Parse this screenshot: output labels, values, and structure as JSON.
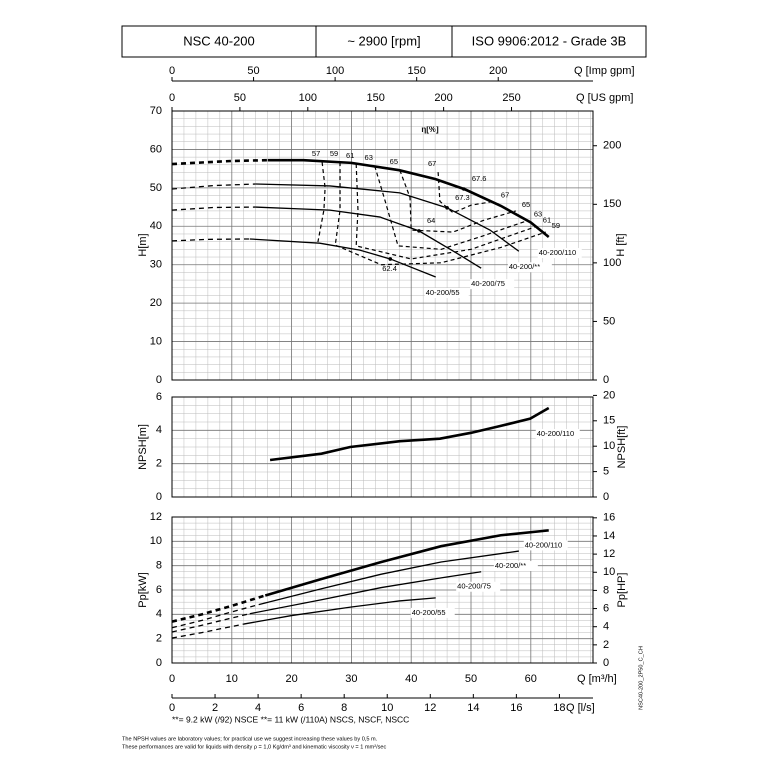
{
  "header": {
    "model": "NSC 40-200",
    "speed": "~ 2900 [rpm]",
    "standard": "ISO 9906:2012 - Grade 3B"
  },
  "chart_data": [
    {
      "type": "line",
      "ylabel": "H[m]",
      "y2label": "H [ft]",
      "annotation": "η[%]",
      "grid": true,
      "xlim": [
        0,
        70.4
      ],
      "xticks": [
        0,
        10,
        20,
        30,
        40,
        50,
        60
      ],
      "ylim": [
        0,
        70
      ],
      "yticks": [
        0,
        10,
        20,
        30,
        40,
        50,
        60,
        70
      ],
      "y2lim": [
        0,
        229.66
      ],
      "y2ticks": [
        0,
        50,
        100,
        150,
        200
      ],
      "top_axes": [
        {
          "label": "Q [Imp gpm]",
          "lim": [
            0,
            258.1
          ],
          "ticks": [
            0,
            50,
            100,
            150,
            200
          ]
        },
        {
          "label": "Q [US gpm]",
          "lim": [
            0,
            310
          ],
          "ticks": [
            0,
            50,
            100,
            150,
            200,
            250
          ]
        }
      ],
      "series": [
        {
          "name": "40-200/110",
          "color": "#000000",
          "width": 2.6,
          "dashed_until": 16,
          "x": [
            0,
            5,
            10,
            16,
            22,
            30,
            38,
            44,
            49,
            55,
            60,
            63
          ],
          "values": [
            56.2,
            56.6,
            57,
            57.2,
            57.2,
            56.5,
            54.6,
            52.3,
            49.6,
            45.3,
            41,
            37.2
          ]
        },
        {
          "name": "40-200/**",
          "color": "#000000",
          "width": 1.3,
          "dashed_until": 14,
          "x": [
            0,
            7,
            14,
            26.4,
            38.1,
            46,
            53.2,
            58
          ],
          "values": [
            49.7,
            50.6,
            51,
            50.5,
            48.7,
            44.8,
            39,
            33.5
          ]
        },
        {
          "name": "40-200/75",
          "color": "#000000",
          "width": 1.3,
          "dashed_until": 13.9,
          "x": [
            0,
            7,
            13.9,
            26.4,
            34.8,
            41.3,
            47.3,
            51.7
          ],
          "values": [
            44.2,
            44.9,
            45,
            44.2,
            42.4,
            38.8,
            33.3,
            29.1
          ]
        },
        {
          "name": "40-200/55",
          "color": "#000000",
          "width": 1.3,
          "dashed_until": 13,
          "x": [
            0,
            6,
            13,
            24.7,
            31.4,
            36.5,
            44.1
          ],
          "values": [
            36.2,
            36.6,
            36.7,
            35.6,
            33.8,
            31.5,
            26.8
          ]
        }
      ],
      "efficiency": [
        {
          "name": "57",
          "x": [
            25.1,
            25.6,
            25.4,
            24.4
          ],
          "values": [
            56.7,
            50,
            44.2,
            35.9
          ]
        },
        {
          "name": "59",
          "x": [
            28.1,
            28.1,
            27.3,
            35,
            45,
            55,
            62.5
          ],
          "values": [
            56.7,
            44.2,
            35.1,
            30,
            30.5,
            34.5,
            38.5
          ]
        },
        {
          "name": "61",
          "x": [
            30.8,
            31.1,
            30.8,
            40,
            50,
            61
          ],
          "values": [
            56.2,
            44.2,
            34.9,
            31.5,
            34,
            40
          ]
        },
        {
          "name": "63",
          "x": [
            33.9,
            35.6,
            37.8,
            45,
            52,
            59.5
          ],
          "values": [
            55.7,
            46.8,
            34.9,
            34,
            37.5,
            41.5
          ]
        },
        {
          "name": "65",
          "x": [
            38.1,
            39.8,
            40,
            47,
            52,
            57.5
          ],
          "values": [
            54.6,
            47.5,
            39,
            38.5,
            41.5,
            44
          ]
        },
        {
          "name": "67",
          "x": [
            44.5,
            44.8,
            47,
            50,
            54
          ],
          "values": [
            54.1,
            46.5,
            43.5,
            45.5,
            46.5
          ]
        }
      ],
      "bep": [
        {
          "value": 67.6,
          "x": 48.8,
          "y": 49.7
        },
        {
          "value": 67.3,
          "x": 46,
          "y": 44.8
        },
        {
          "value": 64,
          "x": 41.3,
          "y": 38.8
        },
        {
          "value": 62.4,
          "x": 36.5,
          "y": 31.5
        }
      ]
    },
    {
      "type": "line",
      "ylabel": "NPSH[m]",
      "y2label": "NPSH[ft]",
      "grid": true,
      "xlim": [
        0,
        70.4
      ],
      "xticks": [
        0,
        10,
        20,
        30,
        40,
        50,
        60
      ],
      "ylim": [
        0,
        6
      ],
      "yticks": [
        0,
        2,
        4,
        6
      ],
      "y2lim": [
        0,
        19.685
      ],
      "y2ticks": [
        0,
        5,
        10,
        15,
        20
      ],
      "series": [
        {
          "name": "40-200/110",
          "color": "#000000",
          "width": 2.6,
          "x": [
            16.4,
            25,
            29.8,
            38.1,
            44.8,
            50,
            54.8,
            59.9,
            63
          ],
          "values": [
            2.22,
            2.6,
            3.0,
            3.35,
            3.5,
            3.85,
            4.25,
            4.7,
            5.34
          ]
        }
      ]
    },
    {
      "type": "line",
      "ylabel": "Pp[kW]",
      "y2label": "Pp[HP]",
      "xlabel": "Q [m³/h]",
      "x2label": "Q [l/s]",
      "grid": true,
      "xlim": [
        0,
        70.4
      ],
      "xticks": [
        0,
        10,
        20,
        30,
        40,
        50,
        60
      ],
      "x2lim": [
        0,
        19.56
      ],
      "x2ticks": [
        0,
        2,
        4,
        6,
        8,
        10,
        12,
        14,
        16,
        18
      ],
      "ylim": [
        0,
        12
      ],
      "yticks": [
        0,
        2,
        4,
        6,
        8,
        10,
        12
      ],
      "y2lim": [
        0,
        16.09
      ],
      "y2ticks": [
        0,
        2,
        4,
        6,
        8,
        10,
        12,
        14,
        16
      ],
      "series": [
        {
          "name": "40-200/110",
          "color": "#000000",
          "width": 2.6,
          "dashed_until": 15.6,
          "x": [
            0,
            5,
            10,
            15.6,
            25,
            35,
            45,
            55,
            63
          ],
          "values": [
            3.4,
            4.0,
            4.7,
            5.55,
            6.9,
            8.3,
            9.6,
            10.5,
            10.9
          ]
        },
        {
          "name": "40-200/**",
          "color": "#000000",
          "width": 1.3,
          "dashed_until": 14.5,
          "x": [
            0,
            5,
            10,
            14.5,
            25,
            35,
            45,
            58
          ],
          "values": [
            2.9,
            3.5,
            4.2,
            4.8,
            6.1,
            7.3,
            8.3,
            9.2
          ]
        },
        {
          "name": "40-200/75",
          "color": "#000000",
          "width": 1.3,
          "dashed_until": 13,
          "x": [
            0,
            5,
            10,
            13,
            25,
            35,
            45,
            51.7
          ],
          "values": [
            2.55,
            3.1,
            3.7,
            4.05,
            5.2,
            6.2,
            7.0,
            7.5
          ]
        },
        {
          "name": "40-200/55",
          "color": "#000000",
          "width": 1.3,
          "dashed_until": 12,
          "x": [
            0,
            5,
            10,
            12,
            20,
            30,
            38,
            44.1
          ],
          "values": [
            2.05,
            2.5,
            3.0,
            3.2,
            3.9,
            4.6,
            5.1,
            5.35
          ]
        }
      ]
    }
  ],
  "footer": {
    "note": "**= 9.2 kW (/92) NSCE    **= 11 kW (/110A) NSCS, NSCF, NSCC",
    "disclaimer": [
      "The NPSH values are laboratory values; for practical use we suggest increasing these values by 0,5 m.",
      "These performances are valid for liquids with density ρ = 1,0 Kg/dm³ and kinematic viscosity ν = 1 mm²/sec"
    ],
    "code": "NSC40-200_2P50_C_CH"
  }
}
